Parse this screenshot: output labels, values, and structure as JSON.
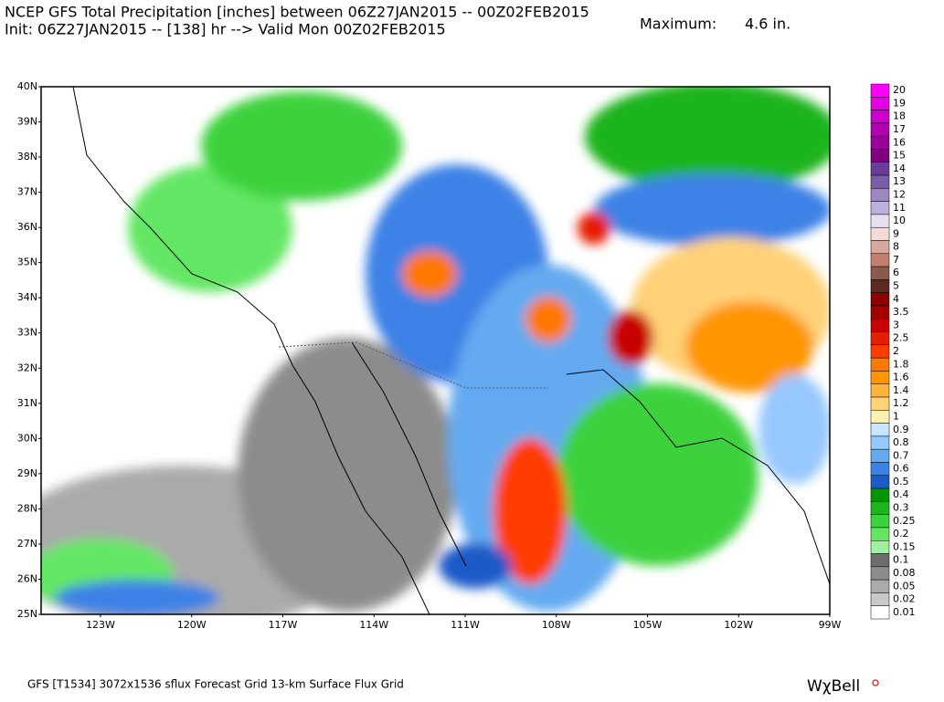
{
  "header": {
    "title": "NCEP GFS Total Precipitation [inches] between 06Z27JAN2015 -- 00Z02FEB2015",
    "subtitle": "Init: 06Z27JAN2015 -- [138] hr --> Valid Mon 00Z02FEB2015",
    "maximum_label": "Maximum:",
    "maximum_value": "4.6 in."
  },
  "map": {
    "lat_labels": [
      "40N",
      "39N",
      "38N",
      "37N",
      "36N",
      "35N",
      "34N",
      "33N",
      "32N",
      "31N",
      "30N",
      "29N",
      "28N",
      "27N",
      "26N",
      "25N"
    ],
    "lon_labels": [
      "123W",
      "120W",
      "117W",
      "114W",
      "111W",
      "108W",
      "105W",
      "102W",
      "99W"
    ]
  },
  "colorbar": [
    {
      "label": "20",
      "color": "#ff00ff"
    },
    {
      "label": "19",
      "color": "#e600e6"
    },
    {
      "label": "18",
      "color": "#cc00cc"
    },
    {
      "label": "17",
      "color": "#b300b3"
    },
    {
      "label": "16",
      "color": "#990099"
    },
    {
      "label": "15",
      "color": "#800080"
    },
    {
      "label": "14",
      "color": "#6a3d9a"
    },
    {
      "label": "13",
      "color": "#7b5ea7"
    },
    {
      "label": "12",
      "color": "#9c88c4"
    },
    {
      "label": "11",
      "color": "#bdb0dc"
    },
    {
      "label": "10",
      "color": "#e6e0f0"
    },
    {
      "label": "9",
      "color": "#f2dcd6"
    },
    {
      "label": "8",
      "color": "#d9a89c"
    },
    {
      "label": "7",
      "color": "#bf8070"
    },
    {
      "label": "6",
      "color": "#8c5a4a"
    },
    {
      "label": "5",
      "color": "#5c2a20"
    },
    {
      "label": "4",
      "color": "#8b0000"
    },
    {
      "label": "3.5",
      "color": "#a30000"
    },
    {
      "label": "3",
      "color": "#c80000"
    },
    {
      "label": "2.5",
      "color": "#e61e00"
    },
    {
      "label": "2",
      "color": "#ff3c00"
    },
    {
      "label": "1.8",
      "color": "#ff7800"
    },
    {
      "label": "1.6",
      "color": "#ff9600"
    },
    {
      "label": "1.4",
      "color": "#ffb43c"
    },
    {
      "label": "1.2",
      "color": "#ffd278"
    },
    {
      "label": "1",
      "color": "#fff0b4"
    },
    {
      "label": "0.9",
      "color": "#c8e6ff"
    },
    {
      "label": "0.8",
      "color": "#96c8ff"
    },
    {
      "label": "0.7",
      "color": "#64aaf0"
    },
    {
      "label": "0.6",
      "color": "#3c82e6"
    },
    {
      "label": "0.5",
      "color": "#1e5ac8"
    },
    {
      "label": "0.4",
      "color": "#009600"
    },
    {
      "label": "0.3",
      "color": "#1eb41e"
    },
    {
      "label": "0.25",
      "color": "#3cd23c"
    },
    {
      "label": "0.2",
      "color": "#64e664"
    },
    {
      "label": "0.15",
      "color": "#a0f0a0"
    },
    {
      "label": "0.1",
      "color": "#6e6e6e"
    },
    {
      "label": "0.08",
      "color": "#8c8c8c"
    },
    {
      "label": "0.05",
      "color": "#aaaaaa"
    },
    {
      "label": "0.02",
      "color": "#c8c8c8"
    },
    {
      "label": "0.01",
      "color": "#ffffff"
    }
  ],
  "footer": {
    "grid_info": "GFS [T1534] 3072x1536 sflux Forecast Grid 13-km Surface Flux Grid",
    "logo": "WχBell"
  }
}
